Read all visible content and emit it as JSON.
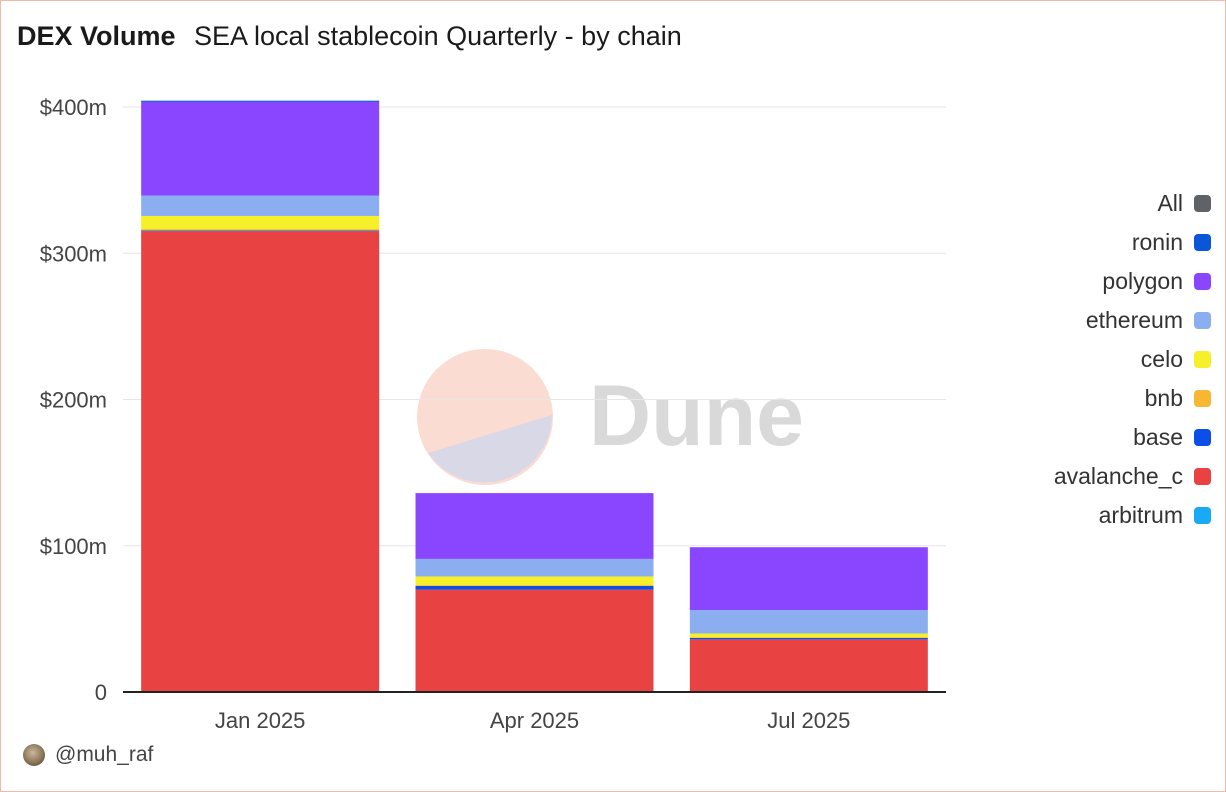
{
  "header": {
    "title": "DEX Volume",
    "subtitle": "SEA local stablecoin Quarterly - by chain"
  },
  "watermark": {
    "text": "Dune"
  },
  "footer": {
    "author": "@muh_raf"
  },
  "chart_data": {
    "type": "bar",
    "stacked": true,
    "title": "DEX Volume",
    "subtitle": "SEA local stablecoin Quarterly - by chain",
    "xlabel": "",
    "ylabel": "",
    "ylim": [
      0,
      400
    ],
    "y_unit": "millions USD",
    "y_ticks": [
      0,
      100,
      200,
      300,
      400
    ],
    "y_tick_labels": [
      "0",
      "$100m",
      "$200m",
      "$300m",
      "$400m"
    ],
    "categories": [
      "Jan 2025",
      "Apr 2025",
      "Jul 2025"
    ],
    "grid": true,
    "legend_position": "right",
    "legend": [
      "All",
      "ronin",
      "polygon",
      "ethereum",
      "celo",
      "bnb",
      "base",
      "avalanche_c",
      "arbitrum"
    ],
    "legend_colors": [
      "#5f6368",
      "#0a55d8",
      "#8a45ff",
      "#8aaef0",
      "#f5f02a",
      "#f7b733",
      "#0b4fe8",
      "#e84242",
      "#1aa9f5"
    ],
    "series": [
      {
        "name": "avalanche_c",
        "color": "#e84242",
        "values": [
          315,
          70,
          36
        ]
      },
      {
        "name": "base",
        "color": "#0b4fe8",
        "values": [
          0.5,
          2.5,
          1
        ]
      },
      {
        "name": "bnb",
        "color": "#f7b733",
        "values": [
          1,
          0.5,
          0.3
        ]
      },
      {
        "name": "celo",
        "color": "#f5f02a",
        "values": [
          9,
          6,
          2.7
        ]
      },
      {
        "name": "ethereum",
        "color": "#8aaef0",
        "values": [
          14,
          12,
          16
        ]
      },
      {
        "name": "polygon",
        "color": "#8a45ff",
        "values": [
          64,
          45,
          43
        ]
      },
      {
        "name": "ronin",
        "color": "#0a55d8",
        "values": [
          0.5,
          0,
          0
        ]
      }
    ]
  }
}
